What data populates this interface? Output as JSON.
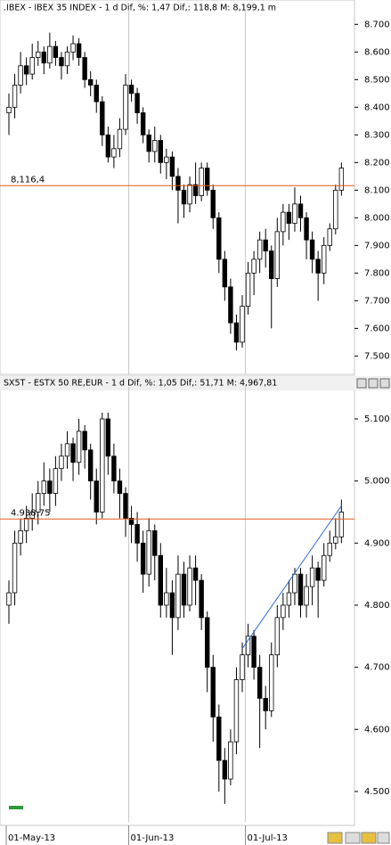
{
  "chart_data": [
    {
      "type": "candlestick",
      "title": ".IBEX - IBEX 35 INDEX -  1 d Dif, %: 1,47 Dif,: 118,8 M: 8,199,1 m",
      "open": [
        8380,
        8400,
        8480,
        8550,
        8520,
        8580,
        8600,
        8560,
        8620,
        8580,
        8550,
        8600,
        8630,
        8580,
        8500,
        8480,
        8420,
        8300,
        8220,
        8250,
        8320,
        8480,
        8450,
        8380,
        8300,
        8240,
        8280,
        8200,
        8220,
        8150,
        8100,
        8050,
        8120,
        8080,
        8180,
        8100,
        8000,
        7850,
        7750,
        7620,
        7550,
        7680,
        7800,
        7850,
        7920,
        7880,
        7780,
        7950,
        8020,
        7980,
        8050,
        8000,
        7920,
        7850,
        7800,
        7900,
        7960,
        8100
      ],
      "high": [
        8450,
        8520,
        8600,
        8580,
        8630,
        8640,
        8620,
        8670,
        8640,
        8600,
        8620,
        8660,
        8650,
        8600,
        8530,
        8500,
        8440,
        8330,
        8300,
        8360,
        8520,
        8500,
        8470,
        8400,
        8320,
        8330,
        8300,
        8250,
        8240,
        8180,
        8120,
        8150,
        8200,
        8200,
        8200,
        8120,
        8020,
        7880,
        7780,
        7650,
        7720,
        7840,
        7880,
        7950,
        7960,
        7900,
        8000,
        8050,
        8050,
        8110,
        8080,
        8020,
        7950,
        7880,
        7930,
        7980,
        8120,
        8200
      ],
      "low": [
        8300,
        8360,
        8450,
        8480,
        8500,
        8550,
        8520,
        8540,
        8550,
        8500,
        8520,
        8570,
        8550,
        8470,
        8440,
        8380,
        8260,
        8200,
        8180,
        8220,
        8300,
        8420,
        8340,
        8270,
        8200,
        8200,
        8160,
        8140,
        8100,
        7980,
        8000,
        8020,
        8050,
        8060,
        8080,
        7960,
        7800,
        7700,
        7580,
        7520,
        7530,
        7650,
        7720,
        7800,
        7820,
        7600,
        7750,
        7900,
        7920,
        7950,
        7950,
        7850,
        7800,
        7700,
        7760,
        7880,
        7940,
        8080
      ],
      "close": [
        8400,
        8480,
        8550,
        8520,
        8580,
        8600,
        8560,
        8620,
        8580,
        8550,
        8600,
        8630,
        8580,
        8500,
        8480,
        8420,
        8300,
        8220,
        8250,
        8320,
        8480,
        8450,
        8380,
        8300,
        8240,
        8280,
        8200,
        8220,
        8150,
        8100,
        8050,
        8120,
        8080,
        8180,
        8100,
        8000,
        7850,
        7750,
        7620,
        7550,
        7680,
        7800,
        7850,
        7920,
        7880,
        7780,
        7950,
        8020,
        7980,
        8050,
        8000,
        7920,
        7850,
        7800,
        7900,
        7960,
        8100,
        8180
      ],
      "up_color": "#ffffff",
      "down_color": "#000000",
      "ylim": [
        7440,
        8730
      ],
      "yticks": [
        {
          "value": 8700,
          "label": "8.700"
        },
        {
          "value": 8600,
          "label": "8.600"
        },
        {
          "value": 8500,
          "label": "8.500"
        },
        {
          "value": 8400,
          "label": "8.400"
        },
        {
          "value": 8300,
          "label": "8.300"
        },
        {
          "value": 8200,
          "label": "8.200"
        },
        {
          "value": 8100,
          "label": "8.100"
        },
        {
          "value": 8000,
          "label": "8.000"
        },
        {
          "value": 7900,
          "label": "7.900"
        },
        {
          "value": 7800,
          "label": "7.800"
        },
        {
          "value": 7700,
          "label": "7.700"
        },
        {
          "value": 7600,
          "label": "7.600"
        },
        {
          "value": 7500,
          "label": "7.500"
        }
      ],
      "hline": {
        "value": 8116.4,
        "label": "8,116,4",
        "color": "#e05a1a"
      }
    },
    {
      "type": "candlestick",
      "title": "SX5T - ESTX 50 RE,EUR -  1 d Dif, %: 1,05 Dif,: 51,71 M: 4,967,81",
      "categories": [
        "01-May-13",
        null,
        null,
        null,
        null,
        null,
        null,
        null,
        null,
        null,
        null,
        null,
        null,
        null,
        null,
        null,
        null,
        null,
        null,
        null,
        null,
        "01-Jun-13",
        null,
        null,
        null,
        null,
        null,
        null,
        null,
        null,
        null,
        null,
        null,
        null,
        null,
        null,
        null,
        null,
        null,
        null,
        null,
        "01-Jul-13",
        null,
        null,
        null,
        null,
        null,
        null,
        null,
        null,
        null,
        null,
        null,
        null,
        null,
        null,
        null,
        null
      ],
      "open": [
        4800,
        4820,
        4900,
        4920,
        4940,
        4950,
        4980,
        5000,
        4980,
        5020,
        5040,
        5060,
        5030,
        5080,
        5050,
        5000,
        4950,
        5100,
        5040,
        5000,
        4980,
        4940,
        4930,
        4900,
        4850,
        4920,
        4880,
        4800,
        4820,
        4780,
        4850,
        4800,
        4860,
        4840,
        4780,
        4700,
        4620,
        4550,
        4520,
        4580,
        4680,
        4720,
        4750,
        4700,
        4650,
        4630,
        4720,
        4780,
        4800,
        4820,
        4850,
        4800,
        4830,
        4860,
        4840,
        4880,
        4900,
        4910
      ],
      "high": [
        4840,
        4920,
        4940,
        4960,
        4980,
        5000,
        5030,
        5020,
        5040,
        5060,
        5080,
        5070,
        5100,
        5090,
        5060,
        5020,
        5110,
        5110,
        5060,
        5020,
        4990,
        4960,
        4950,
        4920,
        4940,
        4930,
        4900,
        4860,
        4840,
        4880,
        4870,
        4880,
        4880,
        4850,
        4790,
        4720,
        4640,
        4570,
        4600,
        4700,
        4740,
        4770,
        4760,
        4720,
        4670,
        4740,
        4800,
        4820,
        4840,
        4860,
        4860,
        4850,
        4880,
        4870,
        4900,
        4920,
        4940,
        4970
      ],
      "low": [
        4770,
        4800,
        4880,
        4900,
        4920,
        4930,
        4960,
        4950,
        4960,
        5000,
        5020,
        5000,
        5010,
        5020,
        4970,
        4930,
        4940,
        5010,
        4980,
        4940,
        4910,
        4900,
        4870,
        4820,
        4830,
        4840,
        4780,
        4780,
        4720,
        4760,
        4780,
        4790,
        4800,
        4760,
        4660,
        4580,
        4500,
        4480,
        4510,
        4560,
        4660,
        4700,
        4680,
        4570,
        4600,
        4620,
        4700,
        4760,
        4780,
        4800,
        4780,
        4780,
        4800,
        4780,
        4830,
        4870,
        4890,
        4900
      ],
      "close": [
        4820,
        4900,
        4920,
        4940,
        4950,
        4980,
        5000,
        4980,
        5020,
        5040,
        5060,
        5030,
        5080,
        5050,
        5000,
        4950,
        5100,
        5040,
        5000,
        4980,
        4940,
        4930,
        4900,
        4850,
        4920,
        4880,
        4800,
        4820,
        4780,
        4850,
        4800,
        4860,
        4840,
        4780,
        4700,
        4620,
        4550,
        4520,
        4580,
        4680,
        4720,
        4750,
        4700,
        4650,
        4630,
        4720,
        4780,
        4800,
        4820,
        4850,
        4800,
        4830,
        4860,
        4840,
        4880,
        4900,
        4910,
        4950
      ],
      "up_color": "#ffffff",
      "down_color": "#000000",
      "ylim": [
        4454,
        5143
      ],
      "yticks": [
        {
          "value": 5100,
          "label": "5.100"
        },
        {
          "value": 5000,
          "label": "5.000"
        },
        {
          "value": 4900,
          "label": "4.900"
        },
        {
          "value": 4800,
          "label": "4.800"
        },
        {
          "value": 4700,
          "label": "4.700"
        },
        {
          "value": 4600,
          "label": "4.600"
        },
        {
          "value": 4500,
          "label": "4.500"
        }
      ],
      "hline": {
        "value": 4938.75,
        "label": "4.938,75",
        "color": "#e05a1a"
      },
      "trendline": {
        "from": [
          40,
          4730
        ],
        "to": [
          57,
          4960
        ],
        "color": "#2f6fd0"
      }
    }
  ]
}
